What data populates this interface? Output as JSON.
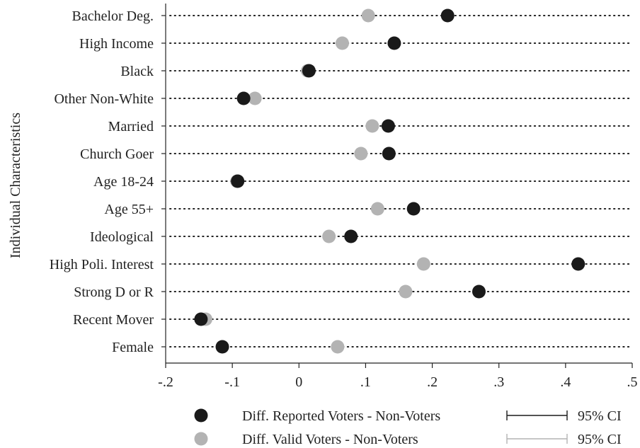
{
  "chart_data": {
    "type": "scatter",
    "title": "",
    "ylabel": "Individual Characteristics",
    "xlabel": "",
    "xlim": [
      -0.2,
      0.5
    ],
    "xticks": [
      -0.2,
      -0.1,
      0,
      0.1,
      0.2,
      0.3,
      0.4,
      0.5
    ],
    "xtick_labels": [
      "-.2",
      "-.1",
      "0",
      ".1",
      ".2",
      ".3",
      ".4",
      ".5"
    ],
    "grid": "dotted horizontal row lines",
    "legend_position": "bottom",
    "categories": [
      "Bachelor Deg.",
      "High Income",
      "Black",
      "Other Non-White",
      "Married",
      "Church Goer",
      "Age 18-24",
      "Age 55+",
      "Ideological",
      "High Poli. Interest",
      "Strong D or R",
      "Recent Mover",
      "Female"
    ],
    "series": [
      {
        "name": "Diff. Reported Voters - Non-Voters",
        "ci_label": "95% CI",
        "color": "#1a1a1a",
        "values": [
          0.223,
          0.143,
          0.015,
          -0.083,
          0.134,
          0.135,
          -0.092,
          0.172,
          0.078,
          0.419,
          0.27,
          -0.147,
          -0.115
        ]
      },
      {
        "name": "Diff. Valid Voters - Non-Voters",
        "ci_label": "95% CI",
        "color": "#b3b3b3",
        "values": [
          0.104,
          0.065,
          0.013,
          -0.066,
          0.11,
          0.093,
          -0.093,
          0.118,
          0.045,
          0.187,
          0.16,
          -0.14,
          0.058
        ]
      }
    ]
  }
}
